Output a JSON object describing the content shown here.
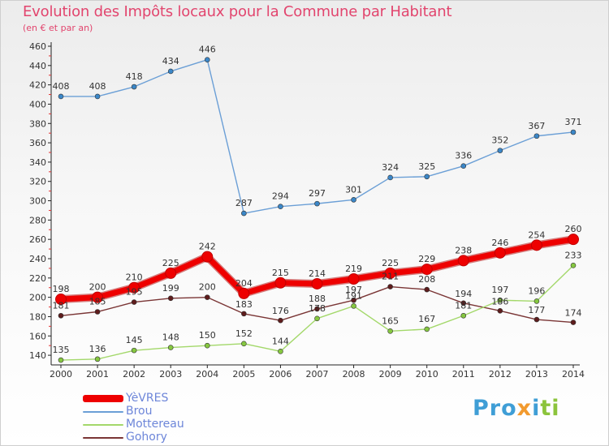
{
  "header": {
    "title": "Evolution des Impôts locaux pour la Commune par Habitant",
    "subtitle": "(en € et par an)"
  },
  "logo": {
    "text": "Proxiti",
    "parts": [
      "Pro",
      "x",
      "i",
      "ti"
    ]
  },
  "chart_data": {
    "type": "line",
    "title": "Evolution des Impôts locaux pour la Commune par Habitant",
    "subtitle": "(en € et par an)",
    "xlabel": "",
    "ylabel": "",
    "x": [
      "2000",
      "2001",
      "2002",
      "2003",
      "2004",
      "2005",
      "2006",
      "2007",
      "2008",
      "2009",
      "2010",
      "2011",
      "2012",
      "2013",
      "2014"
    ],
    "ylim": [
      130,
      460
    ],
    "yticks": [
      140,
      160,
      180,
      200,
      220,
      240,
      260,
      280,
      300,
      320,
      340,
      360,
      380,
      400,
      420,
      440,
      460
    ],
    "grid": false,
    "legend_position": "bottom-left",
    "series": [
      {
        "name": "YèVRES",
        "color": "#ee0000",
        "marker": "#ee0000",
        "emphasis": true,
        "values": [
          198,
          200,
          210,
          225,
          242,
          204,
          215,
          214,
          219,
          225,
          229,
          238,
          246,
          254,
          260
        ]
      },
      {
        "name": "Brou",
        "color": "#6b9fd6",
        "marker": "#3b87c8",
        "values": [
          408,
          408,
          418,
          434,
          446,
          287,
          294,
          297,
          301,
          324,
          325,
          336,
          352,
          367,
          371
        ]
      },
      {
        "name": "Mottereau",
        "color": "#a3d86a",
        "marker": "#86c840",
        "values": [
          135,
          136,
          145,
          148,
          150,
          152,
          144,
          178,
          191,
          165,
          167,
          181,
          197,
          196,
          233
        ]
      },
      {
        "name": "Gohory",
        "color": "#7a3535",
        "marker": "#5e1c1c",
        "values": [
          181,
          185,
          195,
          199,
          200,
          183,
          176,
          188,
          197,
          211,
          208,
          194,
          186,
          177,
          174
        ]
      }
    ]
  }
}
